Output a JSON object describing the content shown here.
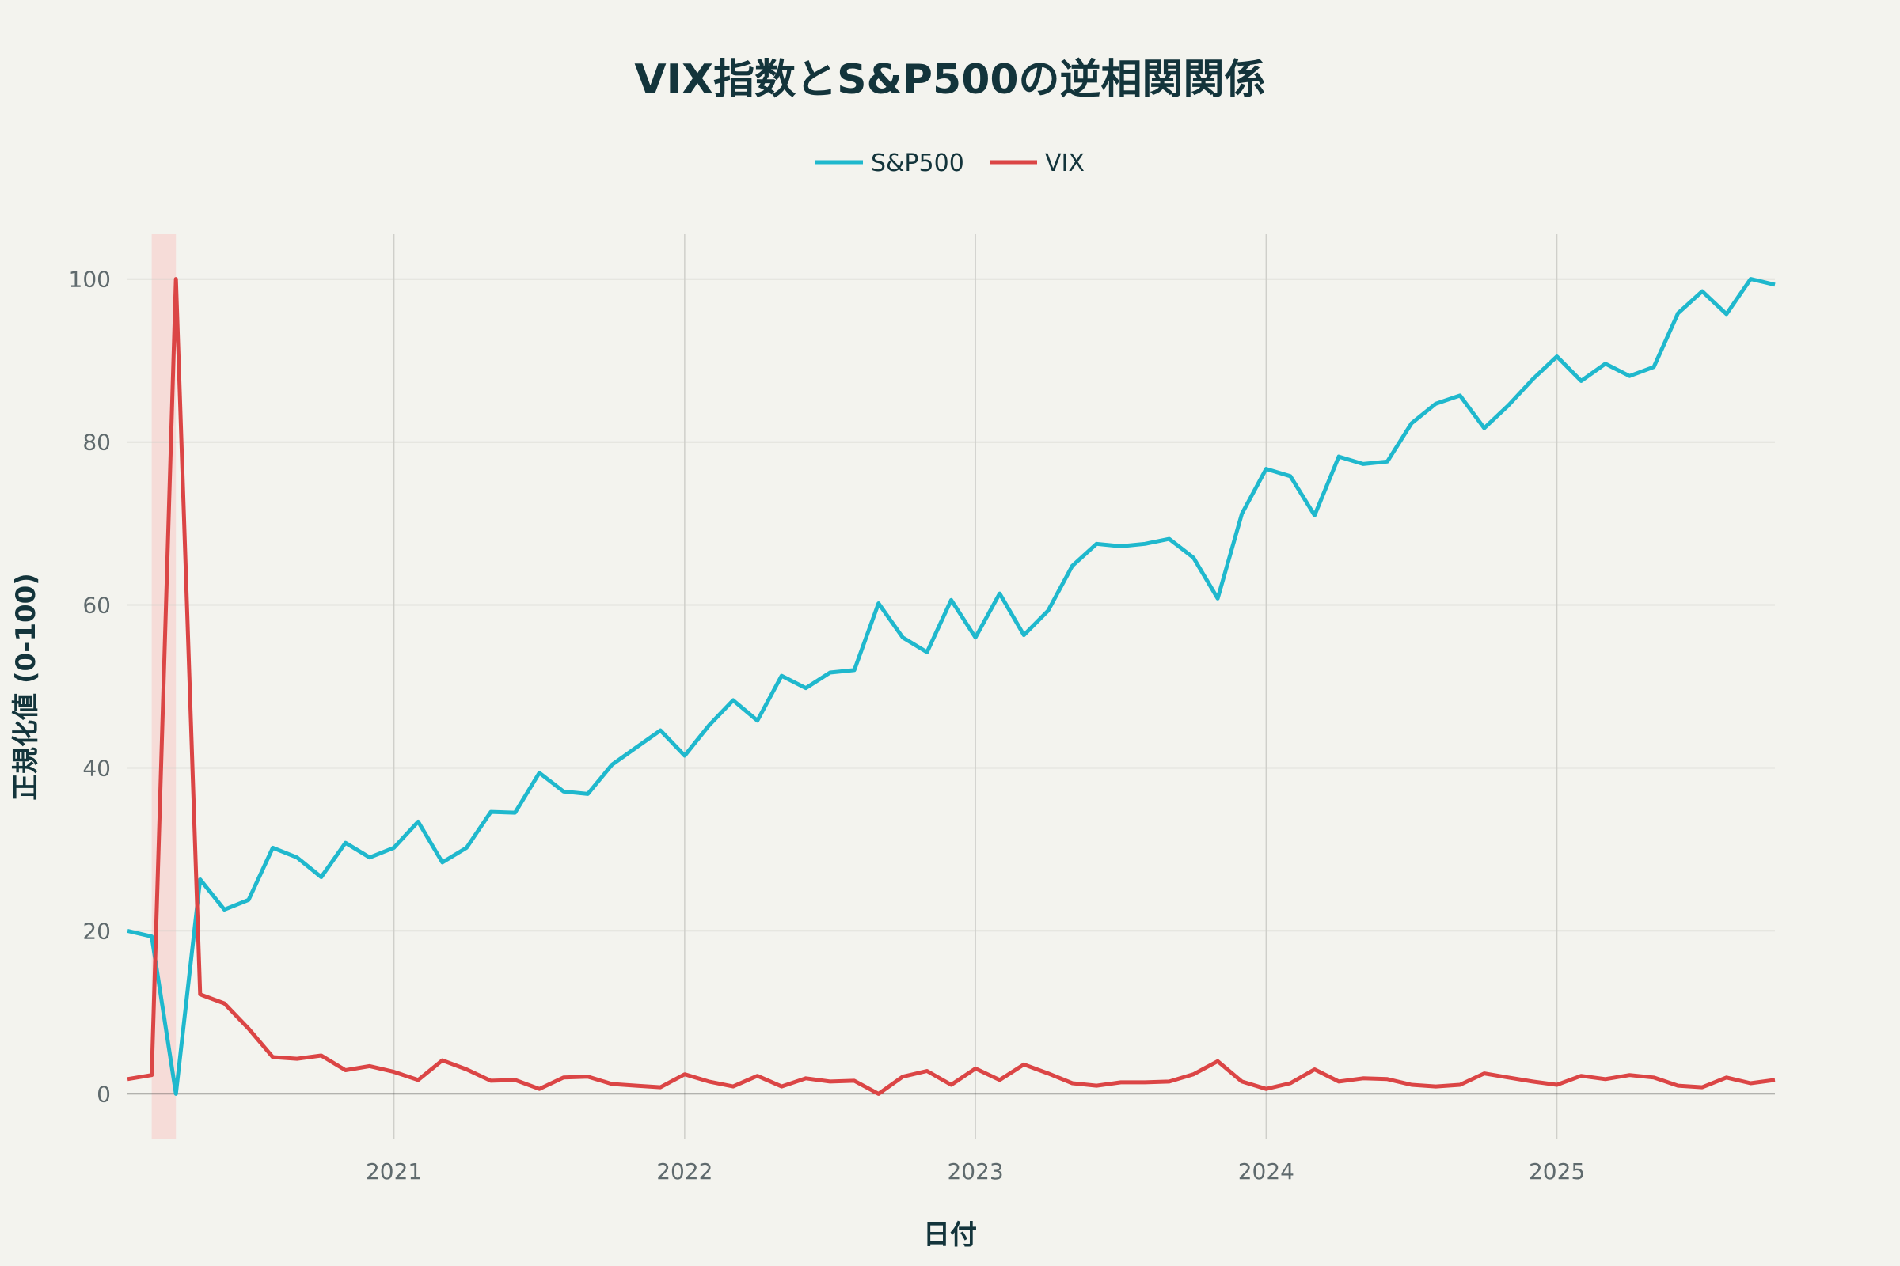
{
  "chart_data": {
    "type": "line",
    "title": "VIX指数とS&P500の逆相関関係",
    "xlabel": "日付",
    "ylabel": "正規化値 (0-100)",
    "ylim": [
      -5.5,
      105.5
    ],
    "xlim": [
      "2020-02",
      "2025-10"
    ],
    "yticks": [
      0,
      20,
      40,
      60,
      80,
      100
    ],
    "xticks": [
      "2021",
      "2022",
      "2023",
      "2024",
      "2025"
    ],
    "grid": true,
    "legend_position": "top-center",
    "highlight": {
      "x0": "2020-03-01",
      "x1": "2020-03-31",
      "color": "#f6dcd8"
    },
    "x": [
      "2020-02",
      "2020-03",
      "2020-04",
      "2020-05",
      "2020-06",
      "2020-07",
      "2020-08",
      "2020-09",
      "2020-10",
      "2020-11",
      "2020-12",
      "2021-01",
      "2021-02",
      "2021-03",
      "2021-04",
      "2021-05",
      "2021-06",
      "2021-07",
      "2021-08",
      "2021-09",
      "2021-10",
      "2021-11",
      "2021-12",
      "2022-01",
      "2022-02",
      "2022-03",
      "2022-04",
      "2022-05",
      "2022-06",
      "2022-07",
      "2022-08",
      "2022-09",
      "2022-10",
      "2022-11",
      "2022-12",
      "2023-01",
      "2023-02",
      "2023-03",
      "2023-04",
      "2023-05",
      "2023-06",
      "2023-07",
      "2023-08",
      "2023-09",
      "2023-10",
      "2023-11",
      "2023-12",
      "2024-01",
      "2024-02",
      "2024-03",
      "2024-04",
      "2024-05",
      "2024-06",
      "2024-07",
      "2024-08",
      "2024-09",
      "2024-10",
      "2024-11",
      "2024-12",
      "2025-01",
      "2025-02",
      "2025-03",
      "2025-04",
      "2025-05",
      "2025-06",
      "2025-07",
      "2025-08",
      "2025-09",
      "2025-10"
    ],
    "series": [
      {
        "name": "S&P500",
        "color": "#1fb8cd",
        "values": [
          20,
          19.3,
          0,
          26.3,
          22.6,
          23.8,
          30.2,
          29,
          26.6,
          30.8,
          29,
          30.2,
          33.4,
          28.4,
          30.2,
          34.6,
          34.5,
          39.4,
          37.1,
          36.8,
          40.4,
          42.5,
          44.6,
          41.5,
          45.2,
          48.3,
          45.8,
          51.3,
          49.8,
          51.7,
          52,
          60.2,
          56,
          54.2,
          60.6,
          56,
          61.4,
          56.3,
          59.3,
          64.8,
          67.5,
          67.2,
          67.5,
          68.1,
          65.8,
          60.8,
          71.2,
          76.7,
          75.8,
          71,
          78.2,
          77.3,
          77.6,
          82.3,
          84.7,
          85.7,
          81.7,
          84.5,
          87.7,
          90.5,
          87.5,
          89.6,
          88.1,
          89.2,
          95.8,
          98.5,
          95.7,
          100,
          99.3
        ]
      },
      {
        "name": "VIX",
        "color": "#db4545",
        "values": [
          1.8,
          2.3,
          100,
          12.2,
          11.1,
          8,
          4.5,
          4.3,
          4.7,
          2.9,
          3.4,
          2.7,
          1.7,
          4.1,
          3.0,
          1.6,
          1.7,
          0.6,
          2.0,
          2.1,
          1.2,
          1.0,
          0.8,
          2.4,
          1.5,
          0.9,
          2.2,
          0.9,
          1.9,
          1.5,
          1.6,
          0,
          2.1,
          2.8,
          1.1,
          3.1,
          1.7,
          3.6,
          2.5,
          1.3,
          1.0,
          1.4,
          1.4,
          1.5,
          2.4,
          4.0,
          1.5,
          0.6,
          1.3,
          3.0,
          1.5,
          1.9,
          1.8,
          1.1,
          0.9,
          1.1,
          2.5,
          2.0,
          1.5,
          1.1,
          2.2,
          1.8,
          2.3,
          2.0,
          1.0,
          0.8,
          2.0,
          1.3,
          1.7
        ]
      }
    ]
  }
}
